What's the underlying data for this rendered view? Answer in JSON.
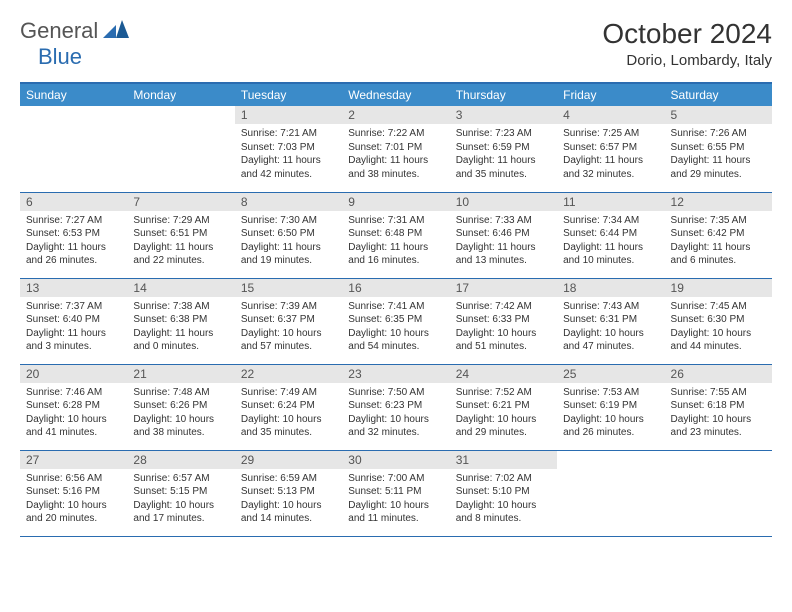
{
  "logo": {
    "general": "General",
    "blue": "Blue"
  },
  "title": "October 2024",
  "location": "Dorio, Lombardy, Italy",
  "colors": {
    "header_bg": "#3b8bc9",
    "header_text": "#ffffff",
    "border": "#2a6cb0",
    "daynum_bg": "#e6e6e6",
    "text": "#333333"
  },
  "day_headers": [
    "Sunday",
    "Monday",
    "Tuesday",
    "Wednesday",
    "Thursday",
    "Friday",
    "Saturday"
  ],
  "cells": [
    {
      "empty": true
    },
    {
      "empty": true
    },
    {
      "num": "1",
      "sunrise": "7:21 AM",
      "sunset": "7:03 PM",
      "daylight": "11 hours and 42 minutes."
    },
    {
      "num": "2",
      "sunrise": "7:22 AM",
      "sunset": "7:01 PM",
      "daylight": "11 hours and 38 minutes."
    },
    {
      "num": "3",
      "sunrise": "7:23 AM",
      "sunset": "6:59 PM",
      "daylight": "11 hours and 35 minutes."
    },
    {
      "num": "4",
      "sunrise": "7:25 AM",
      "sunset": "6:57 PM",
      "daylight": "11 hours and 32 minutes."
    },
    {
      "num": "5",
      "sunrise": "7:26 AM",
      "sunset": "6:55 PM",
      "daylight": "11 hours and 29 minutes."
    },
    {
      "num": "6",
      "sunrise": "7:27 AM",
      "sunset": "6:53 PM",
      "daylight": "11 hours and 26 minutes."
    },
    {
      "num": "7",
      "sunrise": "7:29 AM",
      "sunset": "6:51 PM",
      "daylight": "11 hours and 22 minutes."
    },
    {
      "num": "8",
      "sunrise": "7:30 AM",
      "sunset": "6:50 PM",
      "daylight": "11 hours and 19 minutes."
    },
    {
      "num": "9",
      "sunrise": "7:31 AM",
      "sunset": "6:48 PM",
      "daylight": "11 hours and 16 minutes."
    },
    {
      "num": "10",
      "sunrise": "7:33 AM",
      "sunset": "6:46 PM",
      "daylight": "11 hours and 13 minutes."
    },
    {
      "num": "11",
      "sunrise": "7:34 AM",
      "sunset": "6:44 PM",
      "daylight": "11 hours and 10 minutes."
    },
    {
      "num": "12",
      "sunrise": "7:35 AM",
      "sunset": "6:42 PM",
      "daylight": "11 hours and 6 minutes."
    },
    {
      "num": "13",
      "sunrise": "7:37 AM",
      "sunset": "6:40 PM",
      "daylight": "11 hours and 3 minutes."
    },
    {
      "num": "14",
      "sunrise": "7:38 AM",
      "sunset": "6:38 PM",
      "daylight": "11 hours and 0 minutes."
    },
    {
      "num": "15",
      "sunrise": "7:39 AM",
      "sunset": "6:37 PM",
      "daylight": "10 hours and 57 minutes."
    },
    {
      "num": "16",
      "sunrise": "7:41 AM",
      "sunset": "6:35 PM",
      "daylight": "10 hours and 54 minutes."
    },
    {
      "num": "17",
      "sunrise": "7:42 AM",
      "sunset": "6:33 PM",
      "daylight": "10 hours and 51 minutes."
    },
    {
      "num": "18",
      "sunrise": "7:43 AM",
      "sunset": "6:31 PM",
      "daylight": "10 hours and 47 minutes."
    },
    {
      "num": "19",
      "sunrise": "7:45 AM",
      "sunset": "6:30 PM",
      "daylight": "10 hours and 44 minutes."
    },
    {
      "num": "20",
      "sunrise": "7:46 AM",
      "sunset": "6:28 PM",
      "daylight": "10 hours and 41 minutes."
    },
    {
      "num": "21",
      "sunrise": "7:48 AM",
      "sunset": "6:26 PM",
      "daylight": "10 hours and 38 minutes."
    },
    {
      "num": "22",
      "sunrise": "7:49 AM",
      "sunset": "6:24 PM",
      "daylight": "10 hours and 35 minutes."
    },
    {
      "num": "23",
      "sunrise": "7:50 AM",
      "sunset": "6:23 PM",
      "daylight": "10 hours and 32 minutes."
    },
    {
      "num": "24",
      "sunrise": "7:52 AM",
      "sunset": "6:21 PM",
      "daylight": "10 hours and 29 minutes."
    },
    {
      "num": "25",
      "sunrise": "7:53 AM",
      "sunset": "6:19 PM",
      "daylight": "10 hours and 26 minutes."
    },
    {
      "num": "26",
      "sunrise": "7:55 AM",
      "sunset": "6:18 PM",
      "daylight": "10 hours and 23 minutes."
    },
    {
      "num": "27",
      "sunrise": "6:56 AM",
      "sunset": "5:16 PM",
      "daylight": "10 hours and 20 minutes."
    },
    {
      "num": "28",
      "sunrise": "6:57 AM",
      "sunset": "5:15 PM",
      "daylight": "10 hours and 17 minutes."
    },
    {
      "num": "29",
      "sunrise": "6:59 AM",
      "sunset": "5:13 PM",
      "daylight": "10 hours and 14 minutes."
    },
    {
      "num": "30",
      "sunrise": "7:00 AM",
      "sunset": "5:11 PM",
      "daylight": "10 hours and 11 minutes."
    },
    {
      "num": "31",
      "sunrise": "7:02 AM",
      "sunset": "5:10 PM",
      "daylight": "10 hours and 8 minutes."
    },
    {
      "empty": true
    },
    {
      "empty": true
    }
  ],
  "labels": {
    "sunrise": "Sunrise: ",
    "sunset": "Sunset: ",
    "daylight": "Daylight: "
  }
}
